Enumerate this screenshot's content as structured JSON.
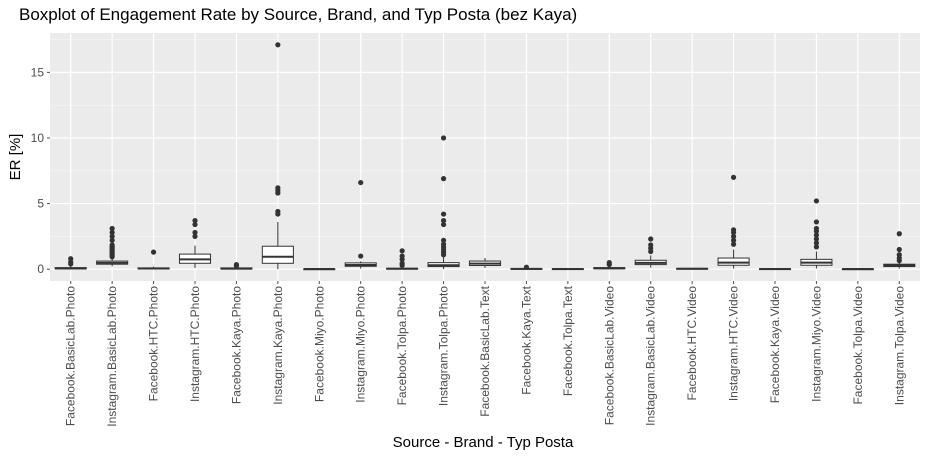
{
  "chart_data": {
    "type": "boxplot",
    "title": "Boxplot of Engagement Rate by Source, Brand, and Typ Posta (bez Kaya)",
    "xlabel": "Source - Brand - Typ Posta",
    "ylabel": "ER [%]",
    "ylim": [
      -0.9,
      18.0
    ],
    "yticks": [
      0,
      5,
      10,
      15
    ],
    "grid": true,
    "categories": [
      "Facebook.BasicLab.Photo",
      "Instagram.BasicLab.Photo",
      "Facebook.HTC.Photo",
      "Instagram.HTC.Photo",
      "Facebook.Kaya.Photo",
      "Instagram.Kaya.Photo",
      "Facebook.Miyo.Photo",
      "Instagram.Miyo.Photo",
      "Facebook.Tolpa.Photo",
      "Instagram.Tolpa.Photo",
      "Facebook.BasicLab.Text",
      "Facebook.Kaya.Text",
      "Facebook.Tolpa.Text",
      "Facebook.BasicLab.Video",
      "Instagram.BasicLab.Video",
      "Facebook.HTC.Video",
      "Instagram.HTC.Video",
      "Facebook.Kaya.Video",
      "Instagram.Miyo.Video",
      "Facebook.Tolpa.Video",
      "Instagram.Tolpa.Video"
    ],
    "boxes": [
      {
        "min": 0.0,
        "q1": 0.02,
        "median": 0.06,
        "q3": 0.12,
        "max": 0.28,
        "outliers": [
          0.4,
          0.55,
          0.8
        ]
      },
      {
        "min": 0.22,
        "q1": 0.38,
        "median": 0.48,
        "q3": 0.62,
        "max": 0.88,
        "outliers": [
          0.95,
          1.05,
          1.15,
          1.25,
          1.35,
          1.45,
          1.55,
          1.65,
          1.75,
          1.85,
          2.2,
          2.5,
          2.8,
          3.1
        ]
      },
      {
        "min": 0.0,
        "q1": 0.02,
        "median": 0.05,
        "q3": 0.1,
        "max": 0.2,
        "outliers": [
          1.3
        ]
      },
      {
        "min": 0.1,
        "q1": 0.45,
        "median": 0.75,
        "q3": 1.15,
        "max": 1.8,
        "outliers": [
          2.5,
          2.8,
          3.4,
          3.7
        ]
      },
      {
        "min": 0.0,
        "q1": 0.01,
        "median": 0.04,
        "q3": 0.1,
        "max": 0.2,
        "outliers": [
          0.25,
          0.35
        ]
      },
      {
        "min": 0.0,
        "q1": 0.45,
        "median": 0.95,
        "q3": 1.75,
        "max": 3.6,
        "outliers": [
          4.2,
          4.4,
          5.8,
          6.0,
          6.2,
          17.1
        ]
      },
      {
        "min": 0.0,
        "q1": 0.0,
        "median": 0.01,
        "q3": 0.02,
        "max": 0.05,
        "outliers": []
      },
      {
        "min": 0.05,
        "q1": 0.22,
        "median": 0.32,
        "q3": 0.48,
        "max": 0.6,
        "outliers": [
          1.0,
          6.6
        ]
      },
      {
        "min": 0.0,
        "q1": 0.01,
        "median": 0.03,
        "q3": 0.07,
        "max": 0.15,
        "outliers": [
          0.3,
          0.45,
          0.75,
          1.0,
          1.4
        ]
      },
      {
        "min": 0.0,
        "q1": 0.2,
        "median": 0.3,
        "q3": 0.5,
        "max": 0.95,
        "outliers": [
          1.1,
          1.3,
          1.5,
          1.7,
          1.9,
          2.2,
          3.4,
          3.7,
          4.2,
          6.9,
          10.0
        ]
      },
      {
        "min": 0.1,
        "q1": 0.28,
        "median": 0.42,
        "q3": 0.62,
        "max": 0.85,
        "outliers": []
      },
      {
        "min": 0.0,
        "q1": 0.0,
        "median": 0.02,
        "q3": 0.05,
        "max": 0.1,
        "outliers": [
          0.15
        ]
      },
      {
        "min": 0.0,
        "q1": 0.0,
        "median": 0.01,
        "q3": 0.03,
        "max": 0.06,
        "outliers": []
      },
      {
        "min": 0.0,
        "q1": 0.03,
        "median": 0.07,
        "q3": 0.12,
        "max": 0.22,
        "outliers": [
          0.35,
          0.5
        ]
      },
      {
        "min": 0.12,
        "q1": 0.35,
        "median": 0.48,
        "q3": 0.68,
        "max": 1.05,
        "outliers": [
          1.35,
          1.6,
          1.85,
          2.3
        ]
      },
      {
        "min": 0.0,
        "q1": 0.01,
        "median": 0.03,
        "q3": 0.06,
        "max": 0.1,
        "outliers": []
      },
      {
        "min": 0.05,
        "q1": 0.3,
        "median": 0.5,
        "q3": 0.85,
        "max": 1.5,
        "outliers": [
          1.9,
          2.2,
          2.5,
          2.8,
          3.0,
          7.0
        ]
      },
      {
        "min": 0.0,
        "q1": 0.0,
        "median": 0.01,
        "q3": 0.03,
        "max": 0.05,
        "outliers": []
      },
      {
        "min": 0.05,
        "q1": 0.3,
        "median": 0.5,
        "q3": 0.75,
        "max": 1.35,
        "outliers": [
          1.7,
          2.0,
          2.3,
          2.6,
          2.9,
          3.1,
          3.6,
          5.2
        ]
      },
      {
        "min": 0.0,
        "q1": 0.0,
        "median": 0.01,
        "q3": 0.02,
        "max": 0.04,
        "outliers": []
      },
      {
        "min": 0.05,
        "q1": 0.2,
        "median": 0.28,
        "q3": 0.38,
        "max": 0.5,
        "outliers": [
          0.65,
          0.85,
          1.1,
          1.5,
          2.7
        ]
      }
    ]
  }
}
